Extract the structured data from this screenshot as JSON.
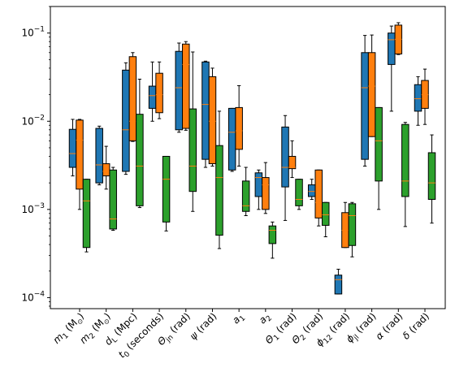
{
  "chart_data": {
    "type": "box",
    "yscale": "log",
    "ylim": [
      7.5e-05,
      0.2
    ],
    "yticks": [
      {
        "value": 0.0001,
        "base": "10",
        "exp": "−4"
      },
      {
        "value": 0.001,
        "base": "10",
        "exp": "−3"
      },
      {
        "value": 0.01,
        "base": "10",
        "exp": "−2"
      },
      {
        "value": 0.1,
        "base": "10",
        "exp": "−1"
      }
    ],
    "categories": [
      {
        "main": "m",
        "sub": "1",
        "tail": " (M",
        "sub2": "⊙",
        "end": ")"
      },
      {
        "main": "m",
        "sub": "2",
        "tail": " (M",
        "sub2": "⊙",
        "end": ")"
      },
      {
        "main": "d",
        "sub": "L",
        "tail": " (Mpc)",
        "sub2": "",
        "end": ""
      },
      {
        "main": "t",
        "sub": "0",
        "tail": " (seconds)",
        "sub2": "",
        "end": ""
      },
      {
        "main": "Θ",
        "sub": "jn",
        "tail": " (rad)",
        "sub2": "",
        "end": ""
      },
      {
        "main": "ψ",
        "sub": "",
        "tail": " (rad)",
        "sub2": "",
        "end": ""
      },
      {
        "main": "a",
        "sub": "1",
        "tail": "",
        "sub2": "",
        "end": ""
      },
      {
        "main": "a",
        "sub": "2",
        "tail": "",
        "sub2": "",
        "end": ""
      },
      {
        "main": "Θ",
        "sub": "1",
        "tail": " (rad)",
        "sub2": "",
        "end": ""
      },
      {
        "main": "Θ",
        "sub": "2",
        "tail": " (rad)",
        "sub2": "",
        "end": ""
      },
      {
        "main": "ϕ",
        "sub": "12",
        "tail": " (rad)",
        "sub2": "",
        "end": ""
      },
      {
        "main": "ϕ",
        "sub": "jl",
        "tail": " (rad)",
        "sub2": "",
        "end": ""
      },
      {
        "main": "α",
        "sub": "",
        "tail": " (rad)",
        "sub2": "",
        "end": ""
      },
      {
        "main": "δ",
        "sub": "",
        "tail": " (rad)",
        "sub2": "",
        "end": ""
      }
    ],
    "series_colors": [
      "#1f77b4",
      "#ff7f0e",
      "#2ca02c"
    ],
    "boxes": [
      [
        [
          0.0024,
          0.003,
          0.0043,
          0.0081,
          0.0105
        ],
        [
          0.001,
          0.0017,
          0.0061,
          0.0103,
          0.0105
        ],
        [
          0.00033,
          0.00037,
          0.00125,
          0.0022,
          0.0022
        ]
      ],
      [
        [
          0.0019,
          0.002,
          0.0032,
          0.0083,
          0.0088
        ],
        [
          0.0017,
          0.0024,
          0.0027,
          0.0033,
          0.0052
        ],
        [
          0.00058,
          0.0006,
          0.00078,
          0.0028,
          0.003
        ]
      ],
      [
        [
          0.0025,
          0.0027,
          0.008,
          0.038,
          0.046
        ],
        [
          0.0059,
          0.006,
          0.01,
          0.054,
          0.06
        ],
        [
          0.00105,
          0.0011,
          0.0031,
          0.012,
          0.03
        ]
      ],
      [
        [
          0.01,
          0.014,
          0.0195,
          0.025,
          0.047
        ],
        [
          0.0107,
          0.0125,
          0.02,
          0.035,
          0.047
        ],
        [
          0.00057,
          0.00072,
          0.0022,
          0.004,
          0.004
        ]
      ],
      [
        [
          0.0075,
          0.008,
          0.024,
          0.062,
          0.077
        ],
        [
          0.0079,
          0.0083,
          0.044,
          0.075,
          0.08
        ],
        [
          0.00095,
          0.0016,
          0.0031,
          0.0138,
          0.061
        ]
      ],
      [
        [
          0.003,
          0.0037,
          0.0155,
          0.047,
          0.048
        ],
        [
          0.0031,
          0.0033,
          0.01,
          0.032,
          0.04
        ],
        [
          0.00036,
          0.00051,
          0.0023,
          0.0053,
          0.013
        ]
      ],
      [
        [
          0.0027,
          0.0028,
          0.0075,
          0.014,
          0.014
        ],
        [
          0.0031,
          0.0048,
          0.0078,
          0.0143,
          0.0253
        ],
        [
          0.00085,
          0.00095,
          0.0011,
          0.0021,
          0.003
        ]
      ],
      [
        [
          0.001,
          0.0014,
          0.0023,
          0.0026,
          0.0028
        ],
        [
          0.0009,
          0.001,
          0.0019,
          0.0023,
          0.0034
        ],
        [
          0.00028,
          0.00041,
          0.00058,
          0.00065,
          0.00072
        ]
      ],
      [
        [
          0.00075,
          0.0018,
          0.003,
          0.0086,
          0.0116
        ],
        [
          0.0023,
          0.0029,
          0.003,
          0.004,
          0.006
        ],
        [
          0.001,
          0.0011,
          0.0013,
          0.0022,
          0.0022
        ]
      ],
      [
        [
          0.0013,
          0.0014,
          0.0016,
          0.0019,
          0.0022
        ],
        [
          0.00065,
          0.0008,
          0.0012,
          0.0028,
          0.0028
        ],
        [
          0.00049,
          0.00066,
          0.00087,
          0.0012,
          0.0012
        ]
      ],
      [
        [
          0.00011,
          0.00011,
          0.00016,
          0.00018,
          0.00021
        ],
        [
          0.00037,
          0.00037,
          0.00058,
          0.00092,
          0.0012
        ],
        [
          0.00029,
          0.00039,
          0.00085,
          0.00116,
          0.0012
        ]
      ],
      [
        [
          0.0031,
          0.0037,
          0.024,
          0.06,
          0.094
        ],
        [
          0.0067,
          0.0067,
          0.025,
          0.06,
          0.095
        ],
        [
          0.001,
          0.0021,
          0.006,
          0.0143,
          0.0143
        ]
      ],
      [
        [
          0.013,
          0.044,
          0.084,
          0.1,
          0.12
        ],
        [
          0.057,
          0.058,
          0.085,
          0.123,
          0.131
        ],
        [
          0.00064,
          0.0014,
          0.0021,
          0.0092,
          0.0097
        ]
      ],
      [
        [
          0.009,
          0.013,
          0.018,
          0.026,
          0.032
        ],
        [
          0.0092,
          0.014,
          0.02,
          0.029,
          0.039
        ],
        [
          0.0007,
          0.0013,
          0.002,
          0.0044,
          0.007
        ]
      ]
    ]
  }
}
